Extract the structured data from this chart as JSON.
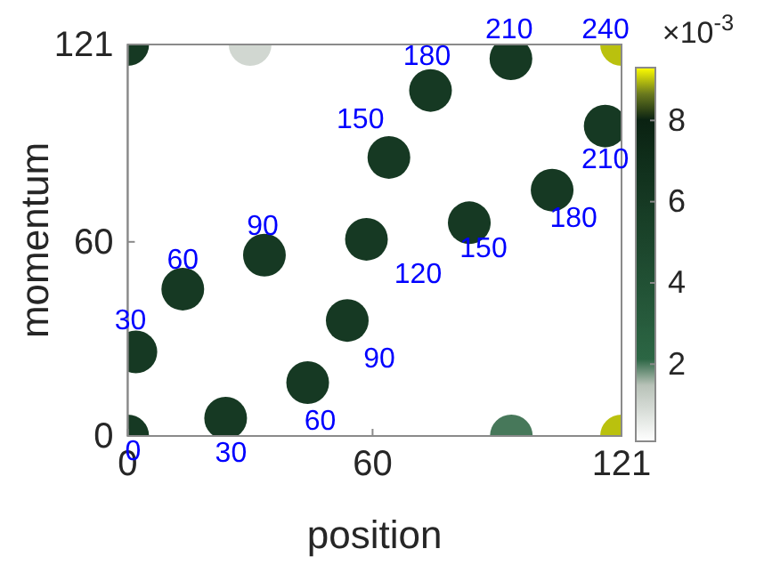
{
  "chart_data": {
    "type": "scatter",
    "xlabel": "position",
    "ylabel": "momentum",
    "clabel": "×10$^{-3}$",
    "x": [
      0,
      121,
      0,
      121,
      2,
      13.5,
      33.5,
      58.5,
      64,
      74.2,
      93.9,
      117,
      104,
      83.7,
      53.8,
      44.1,
      24,
      94,
      30
    ],
    "values": [
      0,
      0,
      121,
      121,
      26,
      45.4,
      55.9,
      60.8,
      86.1,
      106.8,
      116.6,
      95.8,
      76,
      65.9,
      35.7,
      16.5,
      5.5,
      0,
      121
    ],
    "cvalues": [
      6,
      9,
      6,
      9,
      6,
      6,
      6,
      6,
      6,
      6,
      6,
      6,
      6,
      6,
      6,
      6,
      6,
      2,
      1
    ],
    "marker": "circle",
    "xlim": [
      0,
      121
    ],
    "ylim": [
      0,
      121
    ],
    "xticks": [
      0,
      60,
      121
    ],
    "yticks": [
      0,
      60,
      121
    ],
    "clim": [
      0.1,
      9.3
    ],
    "cticks": [
      2,
      4,
      6,
      8
    ],
    "annotations": [
      {
        "text": "0",
        "x": 0,
        "y": 0
      },
      {
        "text": "30",
        "x": 24,
        "y": 5.5
      },
      {
        "text": "60",
        "x": 44.1,
        "y": 16.5
      },
      {
        "text": "90",
        "x": 53.8,
        "y": 35.7
      },
      {
        "text": "120",
        "x": 58.5,
        "y": 60.8
      },
      {
        "text": "150",
        "x": 83.7,
        "y": 65.9
      },
      {
        "text": "180",
        "x": 104,
        "y": 76
      },
      {
        "text": "210",
        "x": 117,
        "y": 95.8
      },
      {
        "text": "240",
        "x": 121,
        "y": 121
      },
      {
        "text": "30",
        "x": 2,
        "y": 26
      },
      {
        "text": "60",
        "x": 13.5,
        "y": 45.4
      },
      {
        "text": "90",
        "x": 33.5,
        "y": 55.9
      },
      {
        "text": "150",
        "x": 64,
        "y": 86.1
      },
      {
        "text": "180",
        "x": 74.2,
        "y": 106.8
      },
      {
        "text": "210",
        "x": 93.9,
        "y": 116.6
      }
    ]
  }
}
